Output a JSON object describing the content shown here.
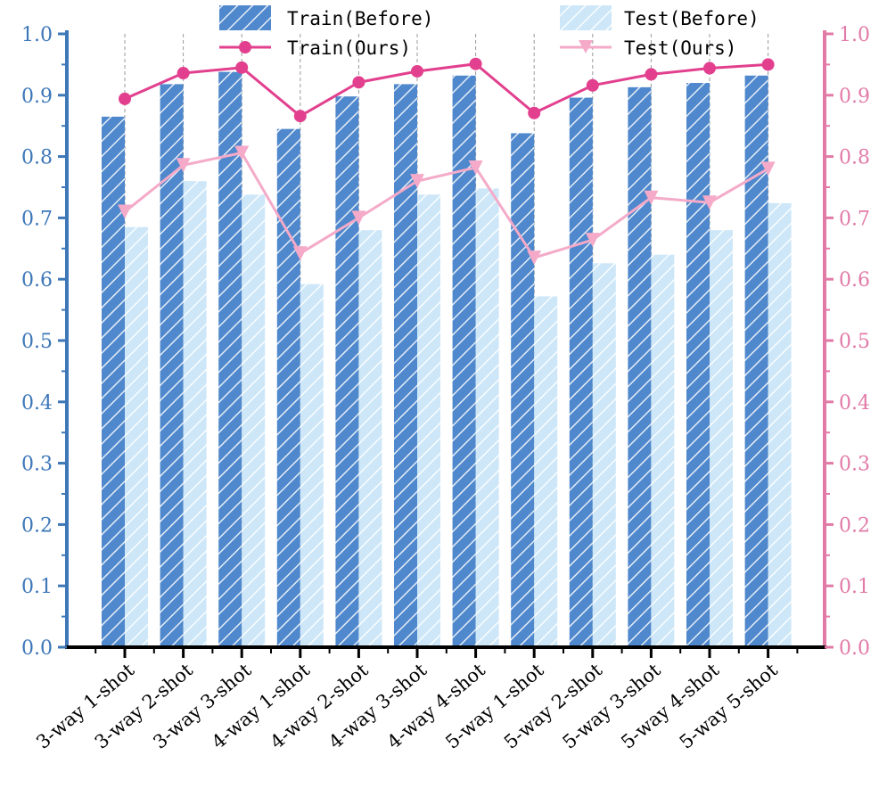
{
  "chart_data": {
    "type": "bar",
    "categories": [
      "3-way 1-shot",
      "3-way 2-shot",
      "3-way 3-shot",
      "4-way 1-shot",
      "4-way 2-shot",
      "4-way 3-shot",
      "4-way 4-shot",
      "5-way 1-shot",
      "5-way 2-shot",
      "5-way 3-shot",
      "5-way 4-shot",
      "5-way 5-shot"
    ],
    "series": [
      {
        "name": "Train(Before)",
        "kind": "bar",
        "values": [
          0.865,
          0.918,
          0.938,
          0.845,
          0.898,
          0.918,
          0.932,
          0.838,
          0.896,
          0.913,
          0.92,
          0.932
        ]
      },
      {
        "name": "Test(Before)",
        "kind": "bar",
        "values": [
          0.685,
          0.76,
          0.738,
          0.592,
          0.68,
          0.738,
          0.748,
          0.572,
          0.626,
          0.64,
          0.68,
          0.724
        ]
      },
      {
        "name": "Train(Ours)",
        "kind": "line",
        "marker": "circle",
        "values": [
          0.894,
          0.936,
          0.945,
          0.866,
          0.921,
          0.939,
          0.951,
          0.871,
          0.916,
          0.934,
          0.944,
          0.95
        ]
      },
      {
        "name": "Test(Ours)",
        "kind": "line",
        "marker": "triangle-down",
        "values": [
          0.71,
          0.786,
          0.806,
          0.642,
          0.7,
          0.76,
          0.782,
          0.635,
          0.664,
          0.733,
          0.725,
          0.78
        ]
      }
    ],
    "ylim": [
      0.0,
      1.0
    ],
    "y_ticks": [
      "0.0",
      "0.1",
      "0.2",
      "0.3",
      "0.4",
      "0.5",
      "0.6",
      "0.7",
      "0.8",
      "0.9",
      "1.0"
    ],
    "y2lim": [
      0.0,
      1.0
    ],
    "legend_position": "top",
    "colors": {
      "train_before": "#4f88cc",
      "test_before": "#cde7f8",
      "train_ours": "#e2408e",
      "test_ours": "#f4aac8",
      "left_axis": "#3d77b8",
      "right_axis": "#e27aa8"
    }
  }
}
